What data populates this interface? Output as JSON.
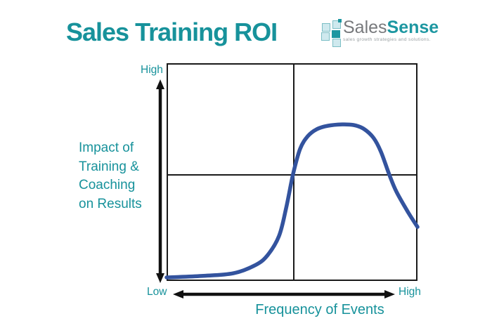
{
  "colors": {
    "teal": "#17929b",
    "curve_blue": "#33539e",
    "line_black": "#1a1a1a",
    "logo_gray": "#77797c",
    "logo_teal": "#1d97a1",
    "logo_light_square": "#cfe9ee",
    "tagline_gray": "#9aa0a3",
    "background": "#ffffff"
  },
  "header": {
    "title": "Sales Training ROI"
  },
  "logo": {
    "name_gray": "Sales",
    "name_teal": "Sense",
    "tagline": "sales growth strategies and solutions."
  },
  "chart": {
    "ylabel_lines": [
      "Impact of",
      "Training &",
      "Coaching",
      "on Results"
    ]
  },
  "chart_data": {
    "type": "line",
    "title": "Sales Training ROI",
    "xlabel": "Frequency of Events",
    "ylabel": "Impact of Training & Coaching on Results",
    "x_axis": {
      "min_label": "Low",
      "max_label": "High",
      "range": [
        0,
        1
      ],
      "ticks": "none"
    },
    "y_axis": {
      "min_label": "Low",
      "max_label": "High",
      "range": [
        0,
        1
      ],
      "ticks": "none"
    },
    "grid": "2x2 quadrant midlines at x=0.5 and y=0.5",
    "legend": "none",
    "curve_color": "#33539e",
    "series": [
      {
        "name": "Impact of Training & Coaching on Results",
        "x": [
          0,
          0.14,
          0.266,
          0.356,
          0.403,
          0.448,
          0.476,
          0.504,
          0.532,
          0.563,
          0.599,
          0.644,
          0.7,
          0.745,
          0.784,
          0.824,
          0.854,
          0.888,
          0.916,
          0.964,
          1.0
        ],
        "y": [
          0.016,
          0.023,
          0.035,
          0.074,
          0.119,
          0.206,
          0.332,
          0.49,
          0.606,
          0.665,
          0.697,
          0.713,
          0.719,
          0.716,
          0.7,
          0.658,
          0.594,
          0.487,
          0.41,
          0.313,
          0.248
        ]
      }
    ]
  }
}
